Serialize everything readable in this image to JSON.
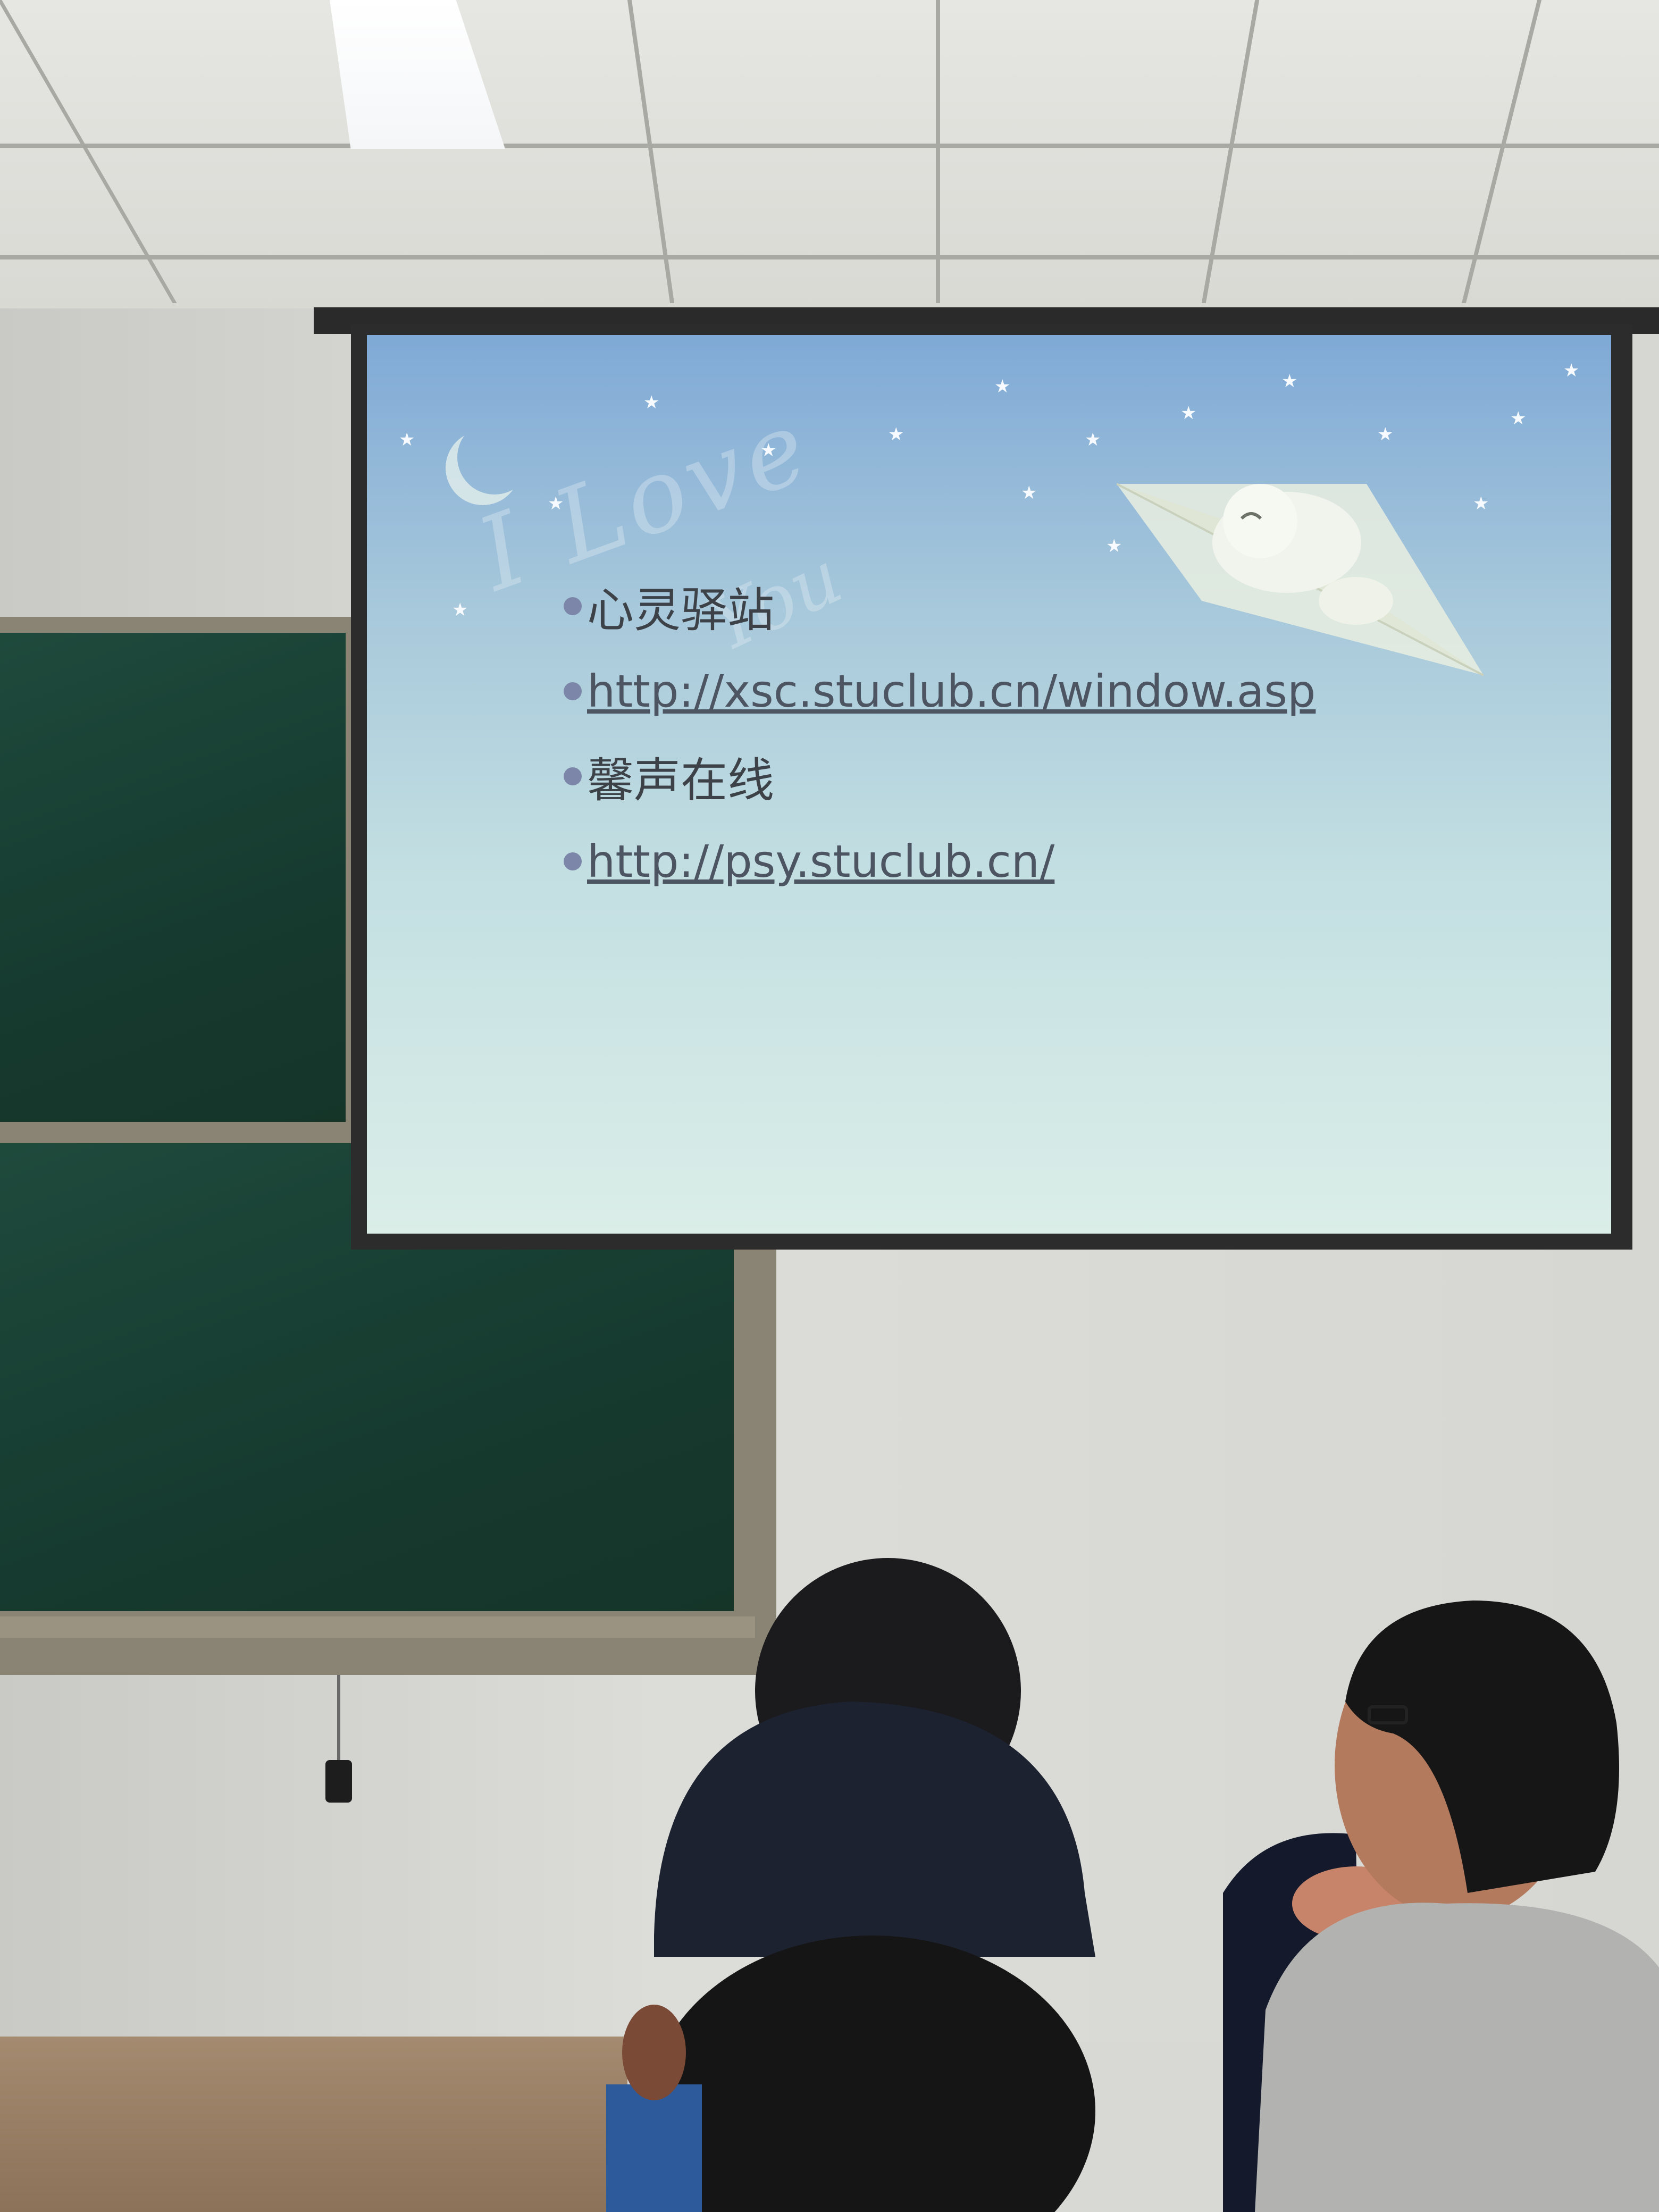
{
  "slide": {
    "watermark_line1": "I Love",
    "watermark_line2": "You",
    "items": [
      {
        "text": "心灵驿站",
        "kind": "title"
      },
      {
        "text": "http://xsc.stuclub.cn/window.asp",
        "kind": "link"
      },
      {
        "text": "馨声在线",
        "kind": "title"
      },
      {
        "text": "http://psy.stuclub.cn/",
        "kind": "link"
      }
    ]
  },
  "colors": {
    "slide_text": "#3d4148",
    "bullet": "#7b86a8",
    "chalkboard": "#1e4a3c"
  }
}
